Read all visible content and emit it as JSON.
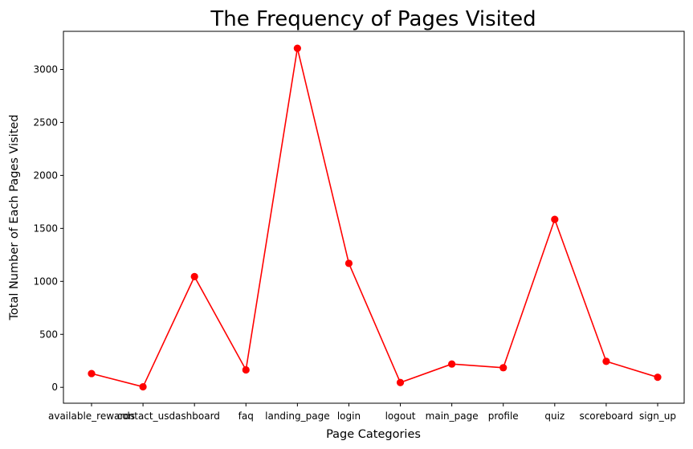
{
  "chart_data": {
    "type": "line",
    "title": "The Frequency of Pages Visited",
    "xlabel": "Page Categories",
    "ylabel": "Total Number of Each Pages Visited",
    "categories": [
      "available_rewards",
      "contact_us",
      "dashboard",
      "faq",
      "landing_page",
      "login",
      "logout",
      "main_page",
      "profile",
      "quiz",
      "scoreboard",
      "sign_up"
    ],
    "series": [
      {
        "values": [
          130,
          5,
          1045,
          165,
          3200,
          1170,
          45,
          220,
          185,
          1585,
          245,
          95
        ]
      }
    ],
    "ylim": [
      -150,
      3360
    ],
    "yticks": [
      0,
      500,
      1000,
      1500,
      2000,
      2500,
      3000
    ],
    "grid": false,
    "marker": "circle",
    "line_color": "#ff0000"
  }
}
